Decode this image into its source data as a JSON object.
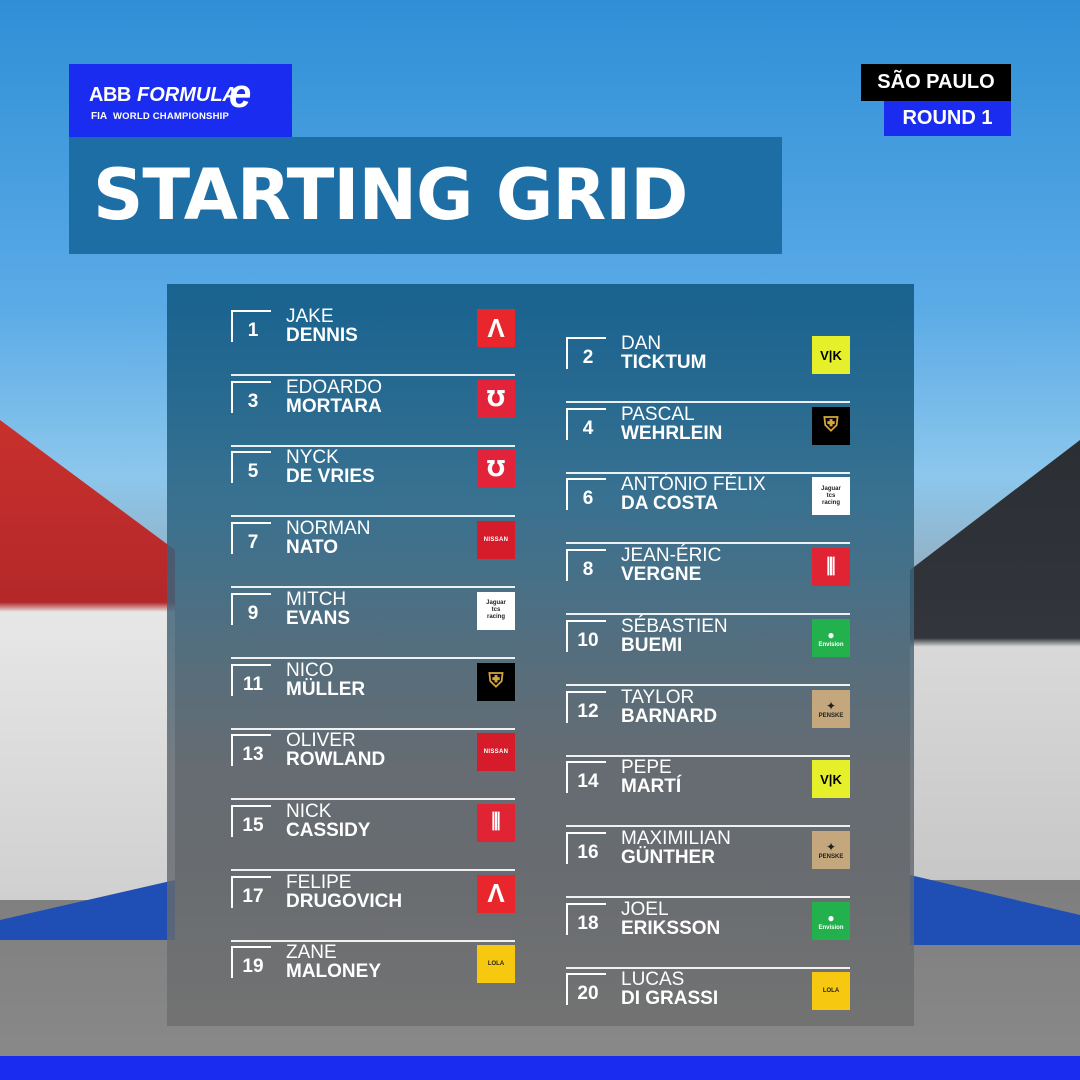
{
  "header": {
    "logo": {
      "abb": "ABB",
      "formula": "FORMULA",
      "e": "e",
      "fia": "FIA",
      "championship": "WORLD CHAMPIONSHIP"
    },
    "title": "STARTING GRID",
    "city": "SÃO PAULO",
    "round": "ROUND 1"
  },
  "colors": {
    "brand_blue": "#1a2cf0",
    "title_bg": "#1e6ea6",
    "city_bg": "#000000"
  },
  "grid": [
    {
      "position": "1",
      "first_name": "JAKE",
      "last_name": "DENNIS",
      "team_icon": "andretti-logo-icon"
    },
    {
      "position": "2",
      "first_name": "DAN",
      "last_name": "TICKTUM",
      "team_icon": "cupra-kiro-logo-icon"
    },
    {
      "position": "3",
      "first_name": "EDOARDO",
      "last_name": "MORTARA",
      "team_icon": "mahindra-logo-icon"
    },
    {
      "position": "4",
      "first_name": "PASCAL",
      "last_name": "WEHRLEIN",
      "team_icon": "porsche-logo-icon"
    },
    {
      "position": "5",
      "first_name": "NYCK",
      "last_name": "DE VRIES",
      "team_icon": "mahindra-logo-icon"
    },
    {
      "position": "6",
      "first_name": "ANTÓNIO FÉLIX",
      "last_name": "DA COSTA",
      "team_icon": "jaguar-tcs-logo-icon"
    },
    {
      "position": "7",
      "first_name": "NORMAN",
      "last_name": "NATO",
      "team_icon": "nissan-logo-icon"
    },
    {
      "position": "8",
      "first_name": "JEAN-ÉRIC",
      "last_name": "VERGNE",
      "team_icon": "citroen-logo-icon"
    },
    {
      "position": "9",
      "first_name": "MITCH",
      "last_name": "EVANS",
      "team_icon": "jaguar-tcs-logo-icon"
    },
    {
      "position": "10",
      "first_name": "SÉBASTIEN",
      "last_name": "BUEMI",
      "team_icon": "envision-logo-icon"
    },
    {
      "position": "11",
      "first_name": "NICO",
      "last_name": "MÜLLER",
      "team_icon": "porsche-logo-icon"
    },
    {
      "position": "12",
      "first_name": "TAYLOR",
      "last_name": "BARNARD",
      "team_icon": "ds-penske-logo-icon"
    },
    {
      "position": "13",
      "first_name": "OLIVER",
      "last_name": "ROWLAND",
      "team_icon": "nissan-logo-icon"
    },
    {
      "position": "14",
      "first_name": "PEPE",
      "last_name": "MARTÍ",
      "team_icon": "cupra-kiro-logo-icon"
    },
    {
      "position": "15",
      "first_name": "NICK",
      "last_name": "CASSIDY",
      "team_icon": "citroen-logo-icon"
    },
    {
      "position": "16",
      "first_name": "MAXIMILIAN",
      "last_name": "GÜNTHER",
      "team_icon": "ds-penske-logo-icon"
    },
    {
      "position": "17",
      "first_name": "FELIPE",
      "last_name": "DRUGOVICH",
      "team_icon": "andretti-logo-icon"
    },
    {
      "position": "18",
      "first_name": "JOEL",
      "last_name": "ERIKSSON",
      "team_icon": "envision-logo-icon"
    },
    {
      "position": "19",
      "first_name": "ZANE",
      "last_name": "MALONEY",
      "team_icon": "lola-logo-icon"
    },
    {
      "position": "20",
      "first_name": "LUCAS",
      "last_name": "DI GRASSI",
      "team_icon": "lola-logo-icon"
    }
  ],
  "team_logo_text": {
    "jaguar_line1": "Jaguar",
    "jaguar_line2": "tcs",
    "jaguar_line3": "racing",
    "nissan": "NISSAN",
    "envision": "Envision",
    "penske": "PENSKE",
    "lola": "LOLA",
    "cupra": "V|K"
  }
}
